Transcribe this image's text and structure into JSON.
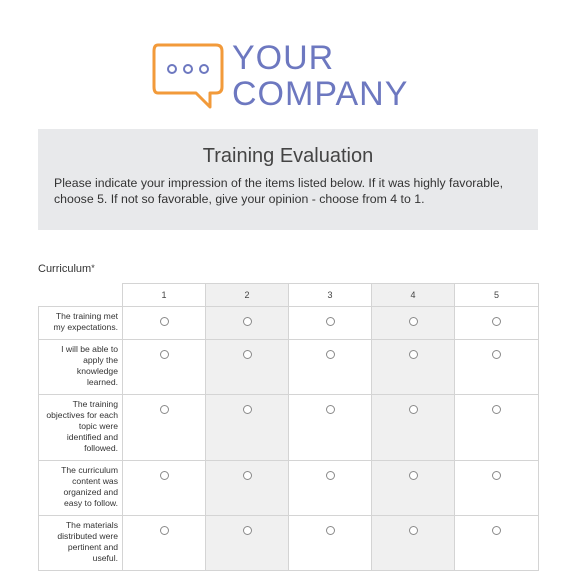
{
  "logo": {
    "text_line1": "YOUR",
    "text_line2": "COMPANY",
    "icon": "chat-bubble-icon",
    "icon_color": "#f29a3a",
    "text_color": "#6d78c0"
  },
  "form": {
    "title": "Training Evaluation",
    "description": "Please indicate your impression of the items listed below. If it was highly favorable, choose 5.  If not so favorable, give your opinion - choose from 4 to 1."
  },
  "question": {
    "label": "Curriculum",
    "required_mark": "*",
    "columns": [
      "1",
      "2",
      "3",
      "4",
      "5"
    ],
    "rows": [
      "The training met my expectations.",
      "I will be able to apply the knowledge learned.",
      "The training objectives for each topic were identified and followed.",
      "The curriculum content was organized and easy to follow.",
      "The materials distributed were pertinent and useful."
    ]
  }
}
